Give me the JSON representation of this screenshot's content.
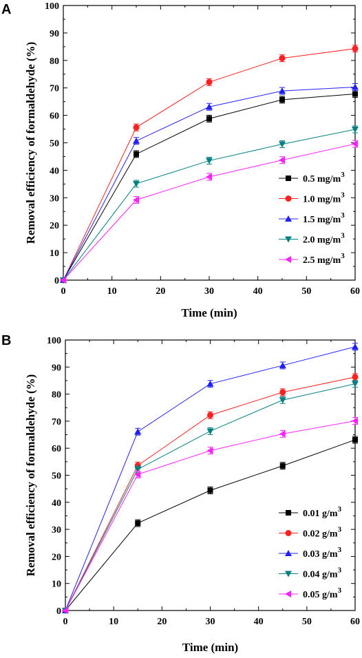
{
  "chart_data": [
    {
      "type": "line",
      "panel_label": "A",
      "xlabel": "Time (min)",
      "ylabel": "Removal efficiency of formaldehyde (%)",
      "xlim": [
        0,
        60
      ],
      "ylim": [
        0,
        100
      ],
      "xticks": [
        0,
        10,
        20,
        30,
        40,
        50,
        60
      ],
      "yticks": [
        0,
        10,
        20,
        30,
        40,
        50,
        60,
        70,
        80,
        90,
        100
      ],
      "x": [
        0,
        15,
        30,
        45,
        60
      ],
      "legend_position": "lower-right",
      "grid": false,
      "series": [
        {
          "name": "0.5 mg/m",
          "sup": "3",
          "color": "#000000",
          "marker": "square",
          "values": [
            0,
            45.9,
            58.8,
            65.7,
            67.8
          ]
        },
        {
          "name": "1.0 mg/m",
          "sup": "3",
          "color": "#ff2020",
          "marker": "circle",
          "values": [
            0,
            55.6,
            72.1,
            80.8,
            84.3
          ]
        },
        {
          "name": "1.5 mg/m",
          "sup": "3",
          "color": "#2020ff",
          "marker": "triangle-up",
          "values": [
            0,
            50.7,
            63.1,
            68.9,
            70.3
          ]
        },
        {
          "name": "2.0 mg/m",
          "sup": "3",
          "color": "#008080",
          "marker": "triangle-down",
          "values": [
            0,
            35.1,
            43.5,
            49.5,
            54.9
          ]
        },
        {
          "name": "2.5 mg/m",
          "sup": "3",
          "color": "#ff20ff",
          "marker": "triangle-left",
          "values": [
            0,
            29.2,
            37.6,
            43.7,
            49.6
          ]
        }
      ]
    },
    {
      "type": "line",
      "panel_label": "B",
      "xlabel": "Time (min)",
      "ylabel": "Removal efficiency of formaldehyde (%)",
      "xlim": [
        0,
        60
      ],
      "ylim": [
        0,
        100
      ],
      "xticks": [
        0,
        10,
        20,
        30,
        40,
        50,
        60
      ],
      "yticks": [
        0,
        10,
        20,
        30,
        40,
        50,
        60,
        70,
        80,
        90,
        100
      ],
      "x": [
        0,
        15,
        30,
        45,
        60
      ],
      "legend_position": "lower-right",
      "grid": false,
      "series": [
        {
          "name": "0.01 g/m",
          "sup": "3",
          "color": "#000000",
          "marker": "square",
          "values": [
            0,
            32.3,
            44.4,
            53.5,
            63.1
          ]
        },
        {
          "name": "0.02 g/m",
          "sup": "3",
          "color": "#ff2020",
          "marker": "circle",
          "values": [
            0,
            53.6,
            72.2,
            80.7,
            86.3
          ]
        },
        {
          "name": "0.03 g/m",
          "sup": "3",
          "color": "#2020ff",
          "marker": "triangle-up",
          "values": [
            0,
            66.1,
            83.8,
            90.6,
            97.5
          ]
        },
        {
          "name": "0.04 g/m",
          "sup": "3",
          "color": "#008080",
          "marker": "triangle-down",
          "values": [
            0,
            52.2,
            66.3,
            77.8,
            83.8
          ]
        },
        {
          "name": "0.05 g/m",
          "sup": "3",
          "color": "#ff20ff",
          "marker": "triangle-left",
          "values": [
            0,
            50.3,
            59.1,
            65.3,
            70.1
          ]
        }
      ]
    }
  ]
}
